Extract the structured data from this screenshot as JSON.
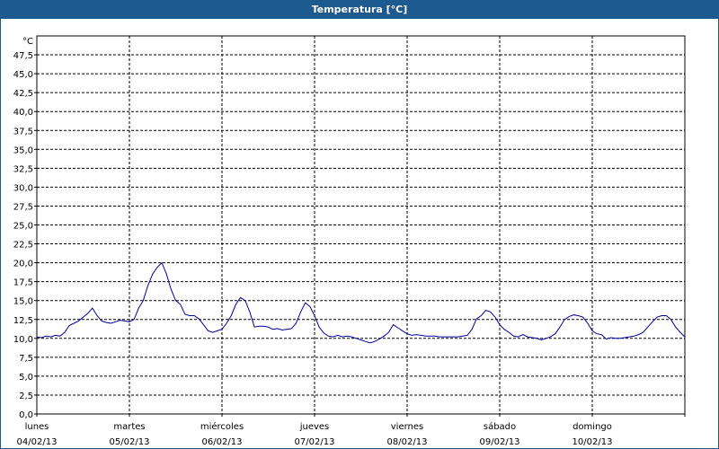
{
  "window": {
    "title": "Temperatura [°C]"
  },
  "chart_data": {
    "type": "line",
    "title": "Temperatura [°C]",
    "ylabel": "°C",
    "xlabel": "",
    "ylim": [
      0,
      50
    ],
    "yticks": [
      "0,0",
      "2,5",
      "5,0",
      "7,5",
      "10,0",
      "12,5",
      "15,0",
      "17,5",
      "20,0",
      "22,5",
      "25,0",
      "27,5",
      "30,0",
      "32,5",
      "35,0",
      "37,5",
      "40,0",
      "42,5",
      "45,0",
      "47,5"
    ],
    "xlim": [
      0,
      7
    ],
    "grid": true,
    "line_color": "#0000a0",
    "days": [
      {
        "name": "lunes",
        "date": "04/02/13"
      },
      {
        "name": "martes",
        "date": "05/02/13"
      },
      {
        "name": "miércoles",
        "date": "06/02/13"
      },
      {
        "name": "jueves",
        "date": "07/02/13"
      },
      {
        "name": "viernes",
        "date": "08/02/13"
      },
      {
        "name": "sábado",
        "date": "09/02/13"
      },
      {
        "name": "domingo",
        "date": "10/02/13"
      }
    ],
    "series": [
      {
        "x": [
          0,
          0.05,
          0.1,
          0.15,
          0.2,
          0.25,
          0.3,
          0.35,
          0.4,
          0.45,
          0.5,
          0.55,
          0.6,
          0.65,
          0.7,
          0.75,
          0.8,
          0.85,
          0.9,
          0.95,
          1.0,
          1.05,
          1.1,
          1.15,
          1.2,
          1.25,
          1.3,
          1.35,
          1.4,
          1.45,
          1.5,
          1.55,
          1.6,
          1.65,
          1.7,
          1.75,
          1.8,
          1.85,
          1.9,
          1.95,
          2.0,
          2.05,
          2.1,
          2.15,
          2.2,
          2.25,
          2.3,
          2.35,
          2.4,
          2.45,
          2.5,
          2.55,
          2.6,
          2.65,
          2.7,
          2.75,
          2.8,
          2.85,
          2.9,
          2.95,
          3.0,
          3.05,
          3.1,
          3.15,
          3.2,
          3.25,
          3.3,
          3.35,
          3.4,
          3.45,
          3.5,
          3.55,
          3.6,
          3.65,
          3.7,
          3.75,
          3.8,
          3.85,
          3.9,
          3.95,
          4.0,
          4.05,
          4.1,
          4.15,
          4.2,
          4.25,
          4.3,
          4.35,
          4.4,
          4.45,
          4.5,
          4.55,
          4.6,
          4.65,
          4.7,
          4.75,
          4.8,
          4.85,
          4.9,
          4.95,
          5.0,
          5.05,
          5.1,
          5.15,
          5.2,
          5.25,
          5.3,
          5.35,
          5.4,
          5.45,
          5.5,
          5.55,
          5.6,
          5.65,
          5.7,
          5.75,
          5.8,
          5.85,
          5.9,
          5.95,
          6.0,
          6.05,
          6.1,
          6.15,
          6.2,
          6.25,
          6.3,
          6.35,
          6.4,
          6.45,
          6.5,
          6.55,
          6.6,
          6.65,
          6.7,
          6.75,
          6.8,
          6.85,
          6.9,
          6.95,
          7.0
        ],
        "y": [
          10.2,
          10.1,
          10.3,
          10.2,
          10.4,
          10.3,
          10.8,
          11.7,
          12.0,
          12.3,
          12.8,
          13.3,
          14.0,
          13.0,
          12.3,
          12.1,
          12.0,
          12.2,
          12.4,
          12.3,
          12.2,
          12.5,
          14.0,
          15.0,
          17.0,
          18.5,
          19.4,
          20.0,
          18.5,
          16.5,
          15.0,
          14.5,
          13.2,
          13.0,
          13.0,
          12.6,
          11.8,
          11.0,
          10.8,
          11.0,
          11.2,
          12.0,
          13.0,
          14.5,
          15.4,
          15.0,
          13.5,
          11.5,
          11.6,
          11.6,
          11.5,
          11.2,
          11.3,
          11.1,
          11.2,
          11.3,
          12.0,
          13.5,
          14.7,
          14.2,
          13.0,
          11.5,
          10.7,
          10.3,
          10.2,
          10.4,
          10.2,
          10.3,
          10.2,
          10.0,
          9.8,
          9.6,
          9.4,
          9.6,
          9.9,
          10.3,
          10.8,
          11.8,
          11.4,
          11.0,
          10.6,
          10.4,
          10.5,
          10.4,
          10.3,
          10.3,
          10.3,
          10.2,
          10.2,
          10.2,
          10.2,
          10.2,
          10.3,
          10.4,
          11.2,
          12.6,
          13.0,
          13.7,
          13.5,
          12.8,
          11.8,
          11.2,
          10.8,
          10.3,
          10.2,
          10.5,
          10.2,
          10.1,
          10.0,
          9.8,
          10.0,
          10.2,
          10.6,
          11.5,
          12.5,
          12.9,
          13.1,
          13.0,
          12.8,
          12.0,
          11.0,
          10.6,
          10.5,
          9.9,
          10.1,
          10.0,
          10.0,
          10.1,
          10.2,
          10.3,
          10.5,
          10.8,
          11.5,
          12.2,
          12.8,
          13.0,
          13.0,
          12.5,
          11.5,
          10.8,
          10.2
        ]
      }
    ]
  }
}
